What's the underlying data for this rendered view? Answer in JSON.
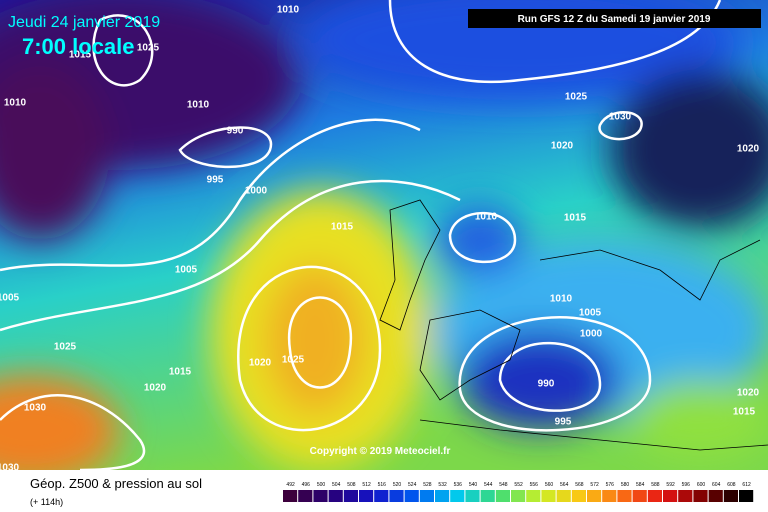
{
  "header": {
    "date": "Jeudi 24 janvier 2019",
    "time": "7:00 locale",
    "run": "Run GFS 12 Z du Samedi 19 janvier 2019"
  },
  "copyright": "Copyright © 2019 Meteociel.fr",
  "footer": {
    "title": "Géop. Z500 & pression au sol",
    "lead": "(+ 114h)"
  },
  "scale": [
    "492",
    "496",
    "500",
    "504",
    "508",
    "512",
    "516",
    "520",
    "524",
    "528",
    "532",
    "536",
    "540",
    "544",
    "548",
    "552",
    "556",
    "560",
    "564",
    "568",
    "572",
    "576",
    "580",
    "584",
    "588",
    "592",
    "596",
    "600",
    "604",
    "608",
    "612"
  ],
  "isobars": [
    "1010",
    "1015",
    "1025",
    "1010",
    "1010",
    "990",
    "995",
    "1000",
    "1015",
    "1005",
    "1005",
    "1025",
    "1020",
    "1015",
    "1020",
    "1025",
    "1030",
    "1030",
    "1025",
    "1030",
    "1020",
    "1020",
    "1010",
    "1015",
    "1010",
    "1005",
    "1000",
    "990",
    "995",
    "1020",
    "1015"
  ]
}
